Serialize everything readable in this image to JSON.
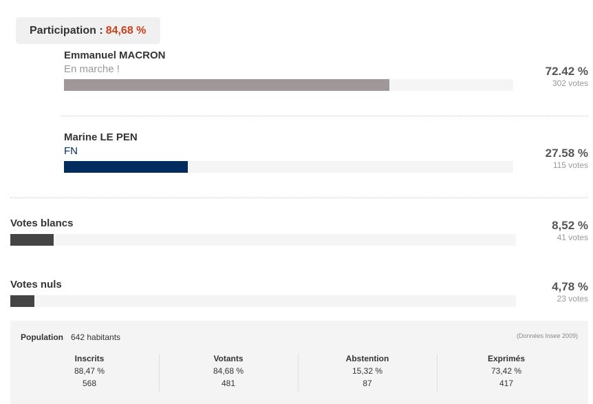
{
  "participation": {
    "label": "Participation : ",
    "value": "84,68 %"
  },
  "candidates": [
    {
      "name": "Emmanuel MACRON",
      "party": "En marche !",
      "percent_text": "72.42 %",
      "percent": 72.42,
      "votes_text": "302 votes",
      "bar_color": "#a09898",
      "party_color": "#999999"
    },
    {
      "name": "Marine LE PEN",
      "party": "FN",
      "percent_text": "27.58 %",
      "percent": 27.58,
      "votes_text": "115 votes",
      "bar_color": "#002d5e",
      "party_color": "#002d5e"
    }
  ],
  "blank": {
    "label": "Votes blancs",
    "percent_text": "8,52 %",
    "percent": 8.52,
    "votes_text": "41 votes",
    "bar_color": "#444444"
  },
  "null_votes": {
    "label": "Votes nuls",
    "percent_text": "4,78 %",
    "percent": 4.78,
    "votes_text": "23 votes",
    "bar_color": "#444444"
  },
  "stats": {
    "population_label": "Population",
    "population_value": "642 habitants",
    "source": "(Données Insee 2009)",
    "columns": [
      {
        "header": "Inscrits",
        "percent": "88,47 %",
        "count": "568"
      },
      {
        "header": "Votants",
        "percent": "84,68 %",
        "count": "481"
      },
      {
        "header": "Abstention",
        "percent": "15,32 %",
        "count": "87"
      },
      {
        "header": "Exprimés",
        "percent": "73,42 %",
        "count": "417"
      }
    ]
  }
}
